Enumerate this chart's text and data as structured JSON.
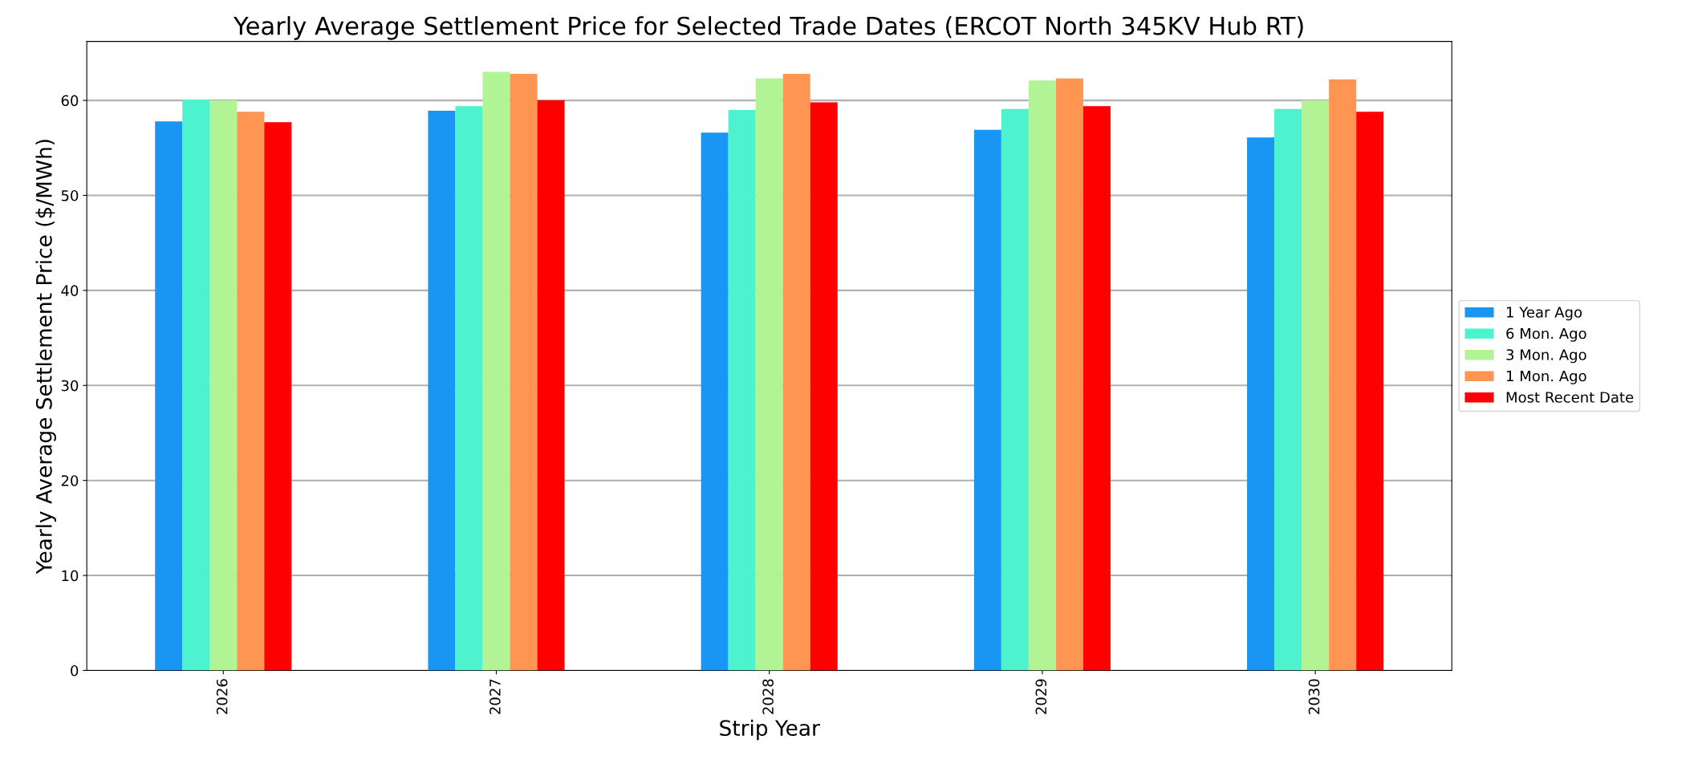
{
  "chart_data": {
    "type": "bar",
    "title": "Yearly Average Settlement Price for Selected Trade Dates (ERCOT North 345KV Hub RT)",
    "xlabel": "Strip Year",
    "ylabel": "Yearly Average Settlement Price ($/MWh)",
    "categories": [
      "2026",
      "2027",
      "2028",
      "2029",
      "2030"
    ],
    "series": [
      {
        "name": "1 Year Ago",
        "color": "#1996f3",
        "values": [
          57.8,
          58.9,
          56.6,
          56.9,
          56.1
        ]
      },
      {
        "name": "6 Mon. Ago",
        "color": "#4df3ce",
        "values": [
          60.1,
          59.4,
          59.0,
          59.1,
          59.1
        ]
      },
      {
        "name": "3 Mon. Ago",
        "color": "#b2f396",
        "values": [
          60.0,
          63.0,
          62.3,
          62.1,
          60.0
        ]
      },
      {
        "name": "1 Mon. Ago",
        "color": "#ff9553",
        "values": [
          58.8,
          62.8,
          62.8,
          62.3,
          62.2
        ]
      },
      {
        "name": "Most Recent Date",
        "color": "#ff0000",
        "values": [
          57.7,
          60.0,
          59.8,
          59.4,
          58.8
        ]
      }
    ],
    "ylim": [
      0,
      66.2
    ],
    "yticks": [
      0,
      10,
      20,
      30,
      40,
      50,
      60
    ],
    "grid": "y",
    "legend": "right"
  }
}
